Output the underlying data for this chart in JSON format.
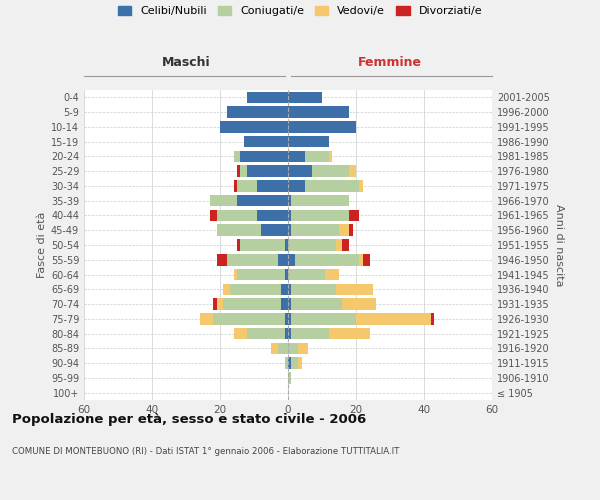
{
  "age_groups": [
    "100+",
    "95-99",
    "90-94",
    "85-89",
    "80-84",
    "75-79",
    "70-74",
    "65-69",
    "60-64",
    "55-59",
    "50-54",
    "45-49",
    "40-44",
    "35-39",
    "30-34",
    "25-29",
    "20-24",
    "15-19",
    "10-14",
    "5-9",
    "0-4"
  ],
  "birth_years": [
    "≤ 1905",
    "1906-1910",
    "1911-1915",
    "1916-1920",
    "1921-1925",
    "1926-1930",
    "1931-1935",
    "1936-1940",
    "1941-1945",
    "1946-1950",
    "1951-1955",
    "1956-1960",
    "1961-1965",
    "1966-1970",
    "1971-1975",
    "1976-1980",
    "1981-1985",
    "1986-1990",
    "1991-1995",
    "1996-2000",
    "2001-2005"
  ],
  "males": {
    "celibi": [
      0,
      0,
      0,
      0,
      1,
      1,
      2,
      2,
      1,
      3,
      1,
      8,
      9,
      15,
      9,
      12,
      14,
      13,
      20,
      18,
      12
    ],
    "coniugati": [
      0,
      0,
      1,
      3,
      11,
      21,
      17,
      15,
      14,
      15,
      13,
      13,
      12,
      8,
      6,
      2,
      2,
      0,
      0,
      0,
      0
    ],
    "vedovi": [
      0,
      0,
      0,
      2,
      4,
      4,
      2,
      2,
      1,
      0,
      0,
      0,
      0,
      0,
      0,
      0,
      0,
      0,
      0,
      0,
      0
    ],
    "divorziati": [
      0,
      0,
      0,
      0,
      0,
      0,
      1,
      0,
      0,
      3,
      1,
      0,
      2,
      0,
      1,
      1,
      0,
      0,
      0,
      0,
      0
    ]
  },
  "females": {
    "nubili": [
      0,
      0,
      1,
      0,
      1,
      1,
      1,
      1,
      0,
      2,
      0,
      1,
      1,
      1,
      5,
      7,
      5,
      12,
      20,
      18,
      10
    ],
    "coniugate": [
      0,
      1,
      2,
      3,
      11,
      19,
      15,
      13,
      11,
      19,
      14,
      14,
      17,
      17,
      16,
      11,
      7,
      0,
      0,
      0,
      0
    ],
    "vedove": [
      0,
      0,
      1,
      3,
      12,
      22,
      10,
      11,
      4,
      1,
      2,
      3,
      0,
      0,
      1,
      2,
      1,
      0,
      0,
      0,
      0
    ],
    "divorziate": [
      0,
      0,
      0,
      0,
      0,
      1,
      0,
      0,
      0,
      2,
      2,
      1,
      3,
      0,
      0,
      0,
      0,
      0,
      0,
      0,
      0
    ]
  },
  "colors": {
    "celibi_nubili": "#3d6fa8",
    "coniugati_e": "#b5cfa0",
    "vedovi_e": "#f5c86e",
    "divorziati_e": "#cc2222"
  },
  "title": "Popolazione per età, sesso e stato civile - 2006",
  "subtitle": "COMUNE DI MONTEBUONO (RI) - Dati ISTAT 1° gennaio 2006 - Elaborazione TUTTITALIA.IT",
  "xlabel_left": "Maschi",
  "xlabel_right": "Femmine",
  "ylabel_left": "Fasce di età",
  "ylabel_right": "Anni di nascita",
  "xlim": 60,
  "legend_labels": [
    "Celibi/Nubili",
    "Coniugati/e",
    "Vedovi/e",
    "Divorziati/e"
  ],
  "bg_color": "#f0f0f0",
  "plot_bg": "#ffffff",
  "grid_color": "#cccccc"
}
